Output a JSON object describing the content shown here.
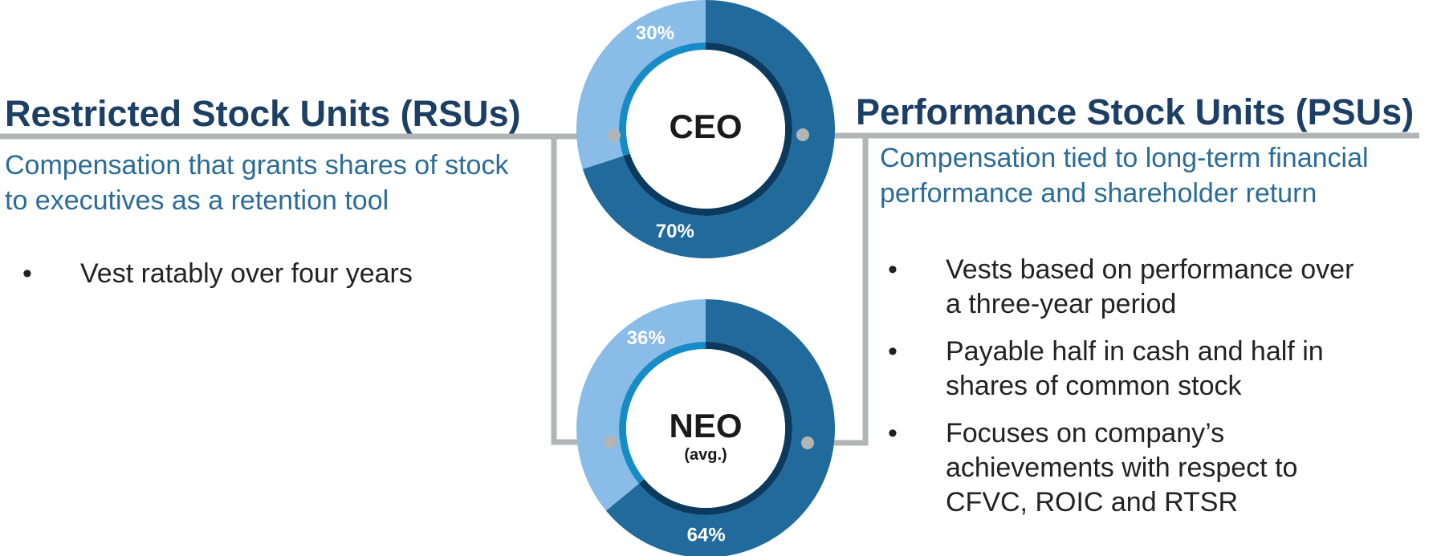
{
  "chart_data": [
    {
      "type": "donut",
      "center_label": "CEO",
      "series": [
        {
          "name": "Performance Stock Units (PSUs)",
          "value": 70,
          "label": "70%",
          "color": "#216a9c",
          "inner_color": "#0c3a5e"
        },
        {
          "name": "Restricted Stock Units (RSUs)",
          "value": 30,
          "label": "30%",
          "color": "#89bce6",
          "inner_color": "#168bc8"
        }
      ]
    },
    {
      "type": "donut",
      "center_label": "NEO",
      "center_sublabel": "(avg.)",
      "series": [
        {
          "name": "Performance Stock Units (PSUs)",
          "value": 64,
          "label": "64%",
          "color": "#216a9c",
          "inner_color": "#0c3a5e"
        },
        {
          "name": "Restricted Stock Units (RSUs)",
          "value": 36,
          "label": "36%",
          "color": "#89bce6",
          "inner_color": "#168bc8"
        }
      ]
    }
  ],
  "rsu": {
    "title": "Restricted Stock Units (RSUs)",
    "subtitle": "Compensation that grants shares of stock to executives as a retention tool",
    "bullets": [
      "Vest ratably over four years"
    ]
  },
  "psu": {
    "title": "Performance Stock Units (PSUs)",
    "subtitle": "Compensation tied to long-term financial performance and shareholder return",
    "bullets": [
      "Vests based on performance over a three-year period",
      "Payable half in cash and half in shares of common stock",
      "Focuses on company’s achievements with respect to CFVC, ROIC and RTSR"
    ]
  },
  "bullet_char": "•",
  "colors": {
    "connector": "#b2b4b6",
    "heading": "#1c3f66",
    "subtitle": "#2b6c96"
  }
}
